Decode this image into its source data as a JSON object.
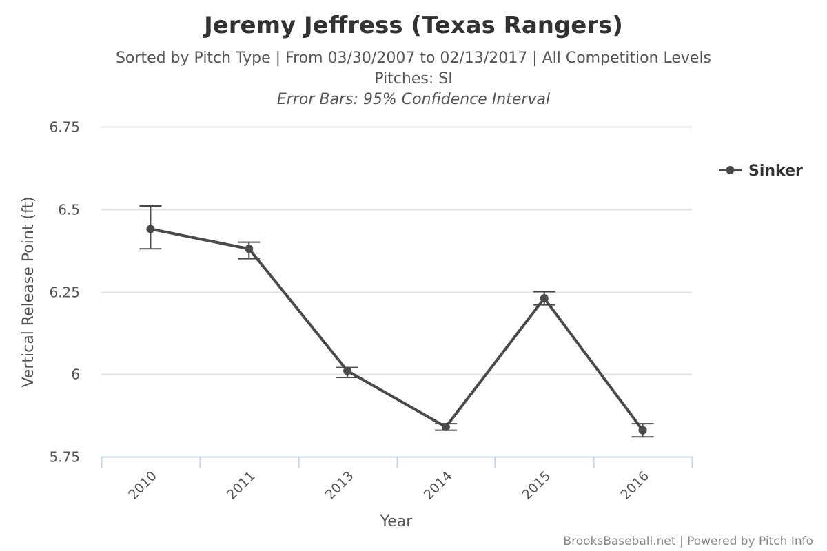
{
  "chart_data": {
    "type": "line",
    "title": "Jeremy Jeffress (Texas Rangers)",
    "subtitle": "Sorted by Pitch Type | From 03/30/2007 to 02/13/2017 | All Competition Levels",
    "subtitle2": "Pitches: SI",
    "subtitle3": "Error Bars: 95% Confidence Interval",
    "xlabel": "Year",
    "ylabel": "Vertical Release Point (ft)",
    "categories": [
      "2010",
      "2011",
      "2013",
      "2014",
      "2015",
      "2016"
    ],
    "yticks": [
      6.75,
      6.5,
      6.25,
      6,
      5.75
    ],
    "ytick_labels": [
      "6.75",
      "6.5",
      "6.25",
      "6",
      "5.75"
    ],
    "ylim": [
      5.75,
      6.75
    ],
    "grid": true,
    "legend_position": "top-right",
    "series": [
      {
        "name": "Sinker",
        "color": "#4a4a4a",
        "values": [
          6.44,
          6.38,
          6.01,
          5.84,
          6.23,
          5.83
        ],
        "error_low": [
          6.38,
          6.35,
          5.99,
          5.83,
          6.21,
          5.81
        ],
        "error_high": [
          6.51,
          6.4,
          6.02,
          5.85,
          6.25,
          5.85
        ]
      }
    ],
    "credits": "BrooksBaseball.net | Powered by Pitch Info"
  }
}
